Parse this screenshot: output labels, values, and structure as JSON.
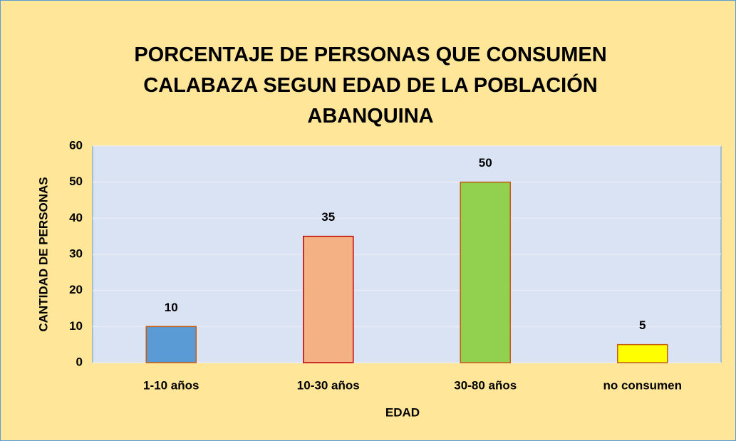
{
  "chart_data": {
    "type": "bar",
    "title": "PORCENTAJE DE PERSONAS QUE CONSUMEN CALABAZA SEGUN EDAD DE LA POBLACIÓN ABANQUINA",
    "xlabel": "EDAD",
    "ylabel": "CANTIDAD DE PERSONAS",
    "categories": [
      "1-10 años",
      "10-30 años",
      "30-80 años",
      "no consumen"
    ],
    "values": [
      10,
      35,
      50,
      5
    ],
    "colors": [
      "#5b9bd5",
      "#f4b183",
      "#92d050",
      "#ffff00"
    ],
    "edgecolors": [
      "#c55a11",
      "#c00000",
      "#c55a11",
      "#c55a11"
    ],
    "ylim": [
      0,
      60
    ],
    "yticks": [
      0,
      10,
      20,
      30,
      40,
      50,
      60
    ],
    "grid": true
  }
}
